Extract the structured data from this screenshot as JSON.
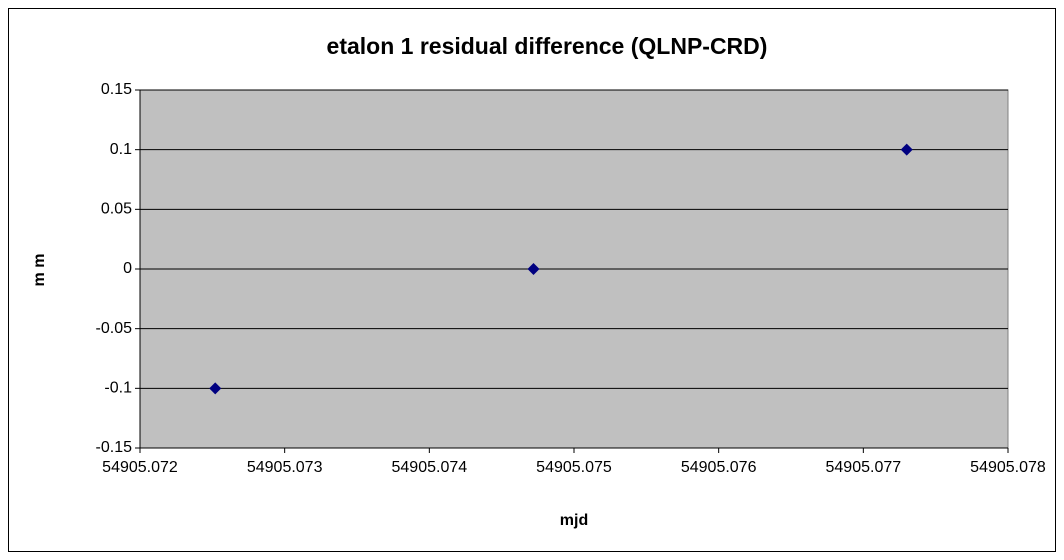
{
  "chart_data": {
    "type": "scatter",
    "title": "etalon 1 residual difference (QLNP-CRD)",
    "x_label": "mjd",
    "y_label": "m m",
    "series": [
      {
        "color": "#000080",
        "x": [
          54905.07252,
          54905.07472,
          54905.0773
        ],
        "values": [
          -0.1,
          0,
          0.1
        ]
      }
    ],
    "xlim": [
      54905.072,
      54905.078
    ],
    "xticks": [
      54905.072,
      54905.073,
      54905.074,
      54905.075,
      54905.076,
      54905.077,
      54905.078
    ],
    "ylim": [
      -0.15,
      0.15
    ],
    "yticks": [
      -0.15,
      -0.1,
      -0.05,
      0,
      0.05,
      0.1,
      0.15
    ],
    "grid": true,
    "plot_background": "#c0c0c0"
  }
}
